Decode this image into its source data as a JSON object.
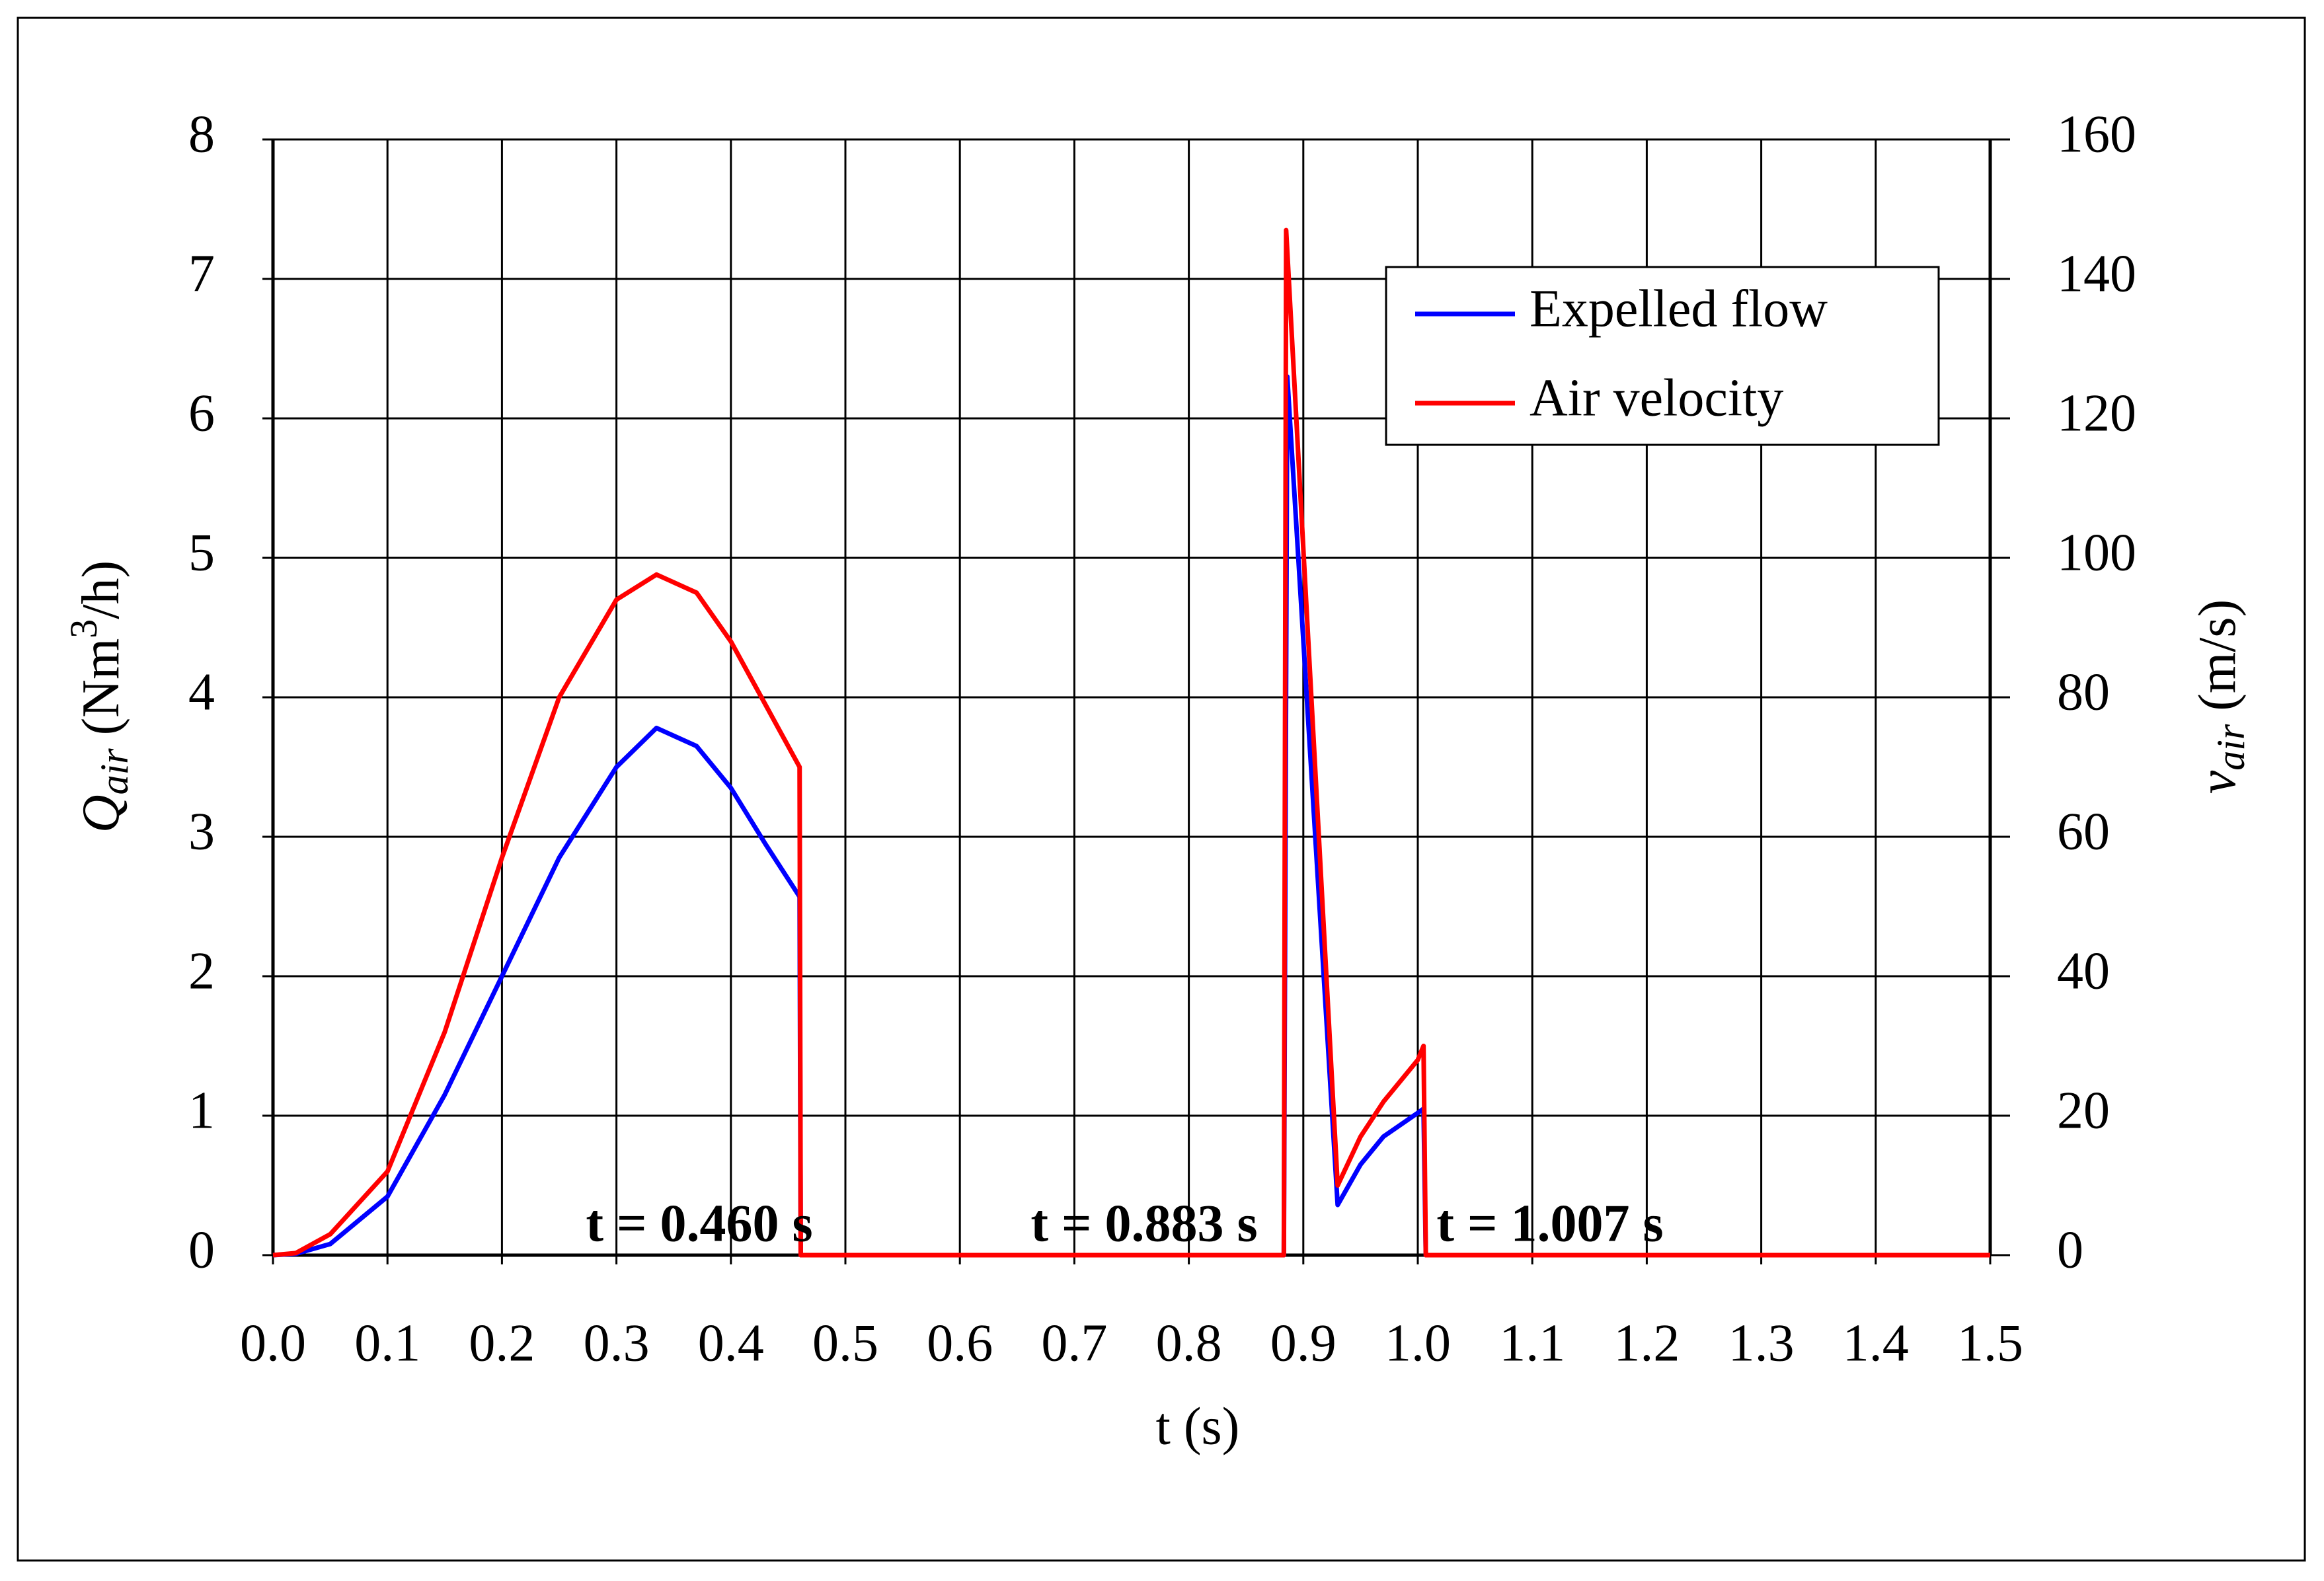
{
  "chart_data": {
    "type": "line",
    "x_label": "t (s)",
    "y_label": {
      "symbol": "Q",
      "subscript": "air",
      "text": " (Nm",
      "superscript": "3",
      "text_end": "/h)"
    },
    "y2_label": {
      "symbol": "v",
      "subscript": "air",
      "text": " (m/s)"
    },
    "xlim": [
      0,
      1.5
    ],
    "xticks": [
      {
        "value": 0,
        "label": "0.0"
      },
      0.1,
      0.2,
      0.3,
      0.4,
      0.5,
      0.6,
      0.7,
      0.8,
      0.9,
      {
        "value": 1,
        "label": "1.0"
      },
      1.1,
      1.2,
      1.3,
      1.4,
      1.5
    ],
    "ylim": [
      0,
      8
    ],
    "yticks": [
      0,
      1,
      2,
      3,
      4,
      5,
      6,
      7,
      8
    ],
    "y2lim": [
      0,
      160
    ],
    "y2ticks": [
      0,
      20,
      40,
      60,
      80,
      100,
      120,
      140,
      160
    ],
    "grid": true,
    "legend": "upper right",
    "series": [
      {
        "name": "Expelled flow",
        "color": "#0000ff",
        "x": [
          0,
          0.02,
          0.05,
          0.1,
          0.15,
          0.2,
          0.25,
          0.3,
          0.335,
          0.37,
          0.4,
          0.43,
          0.46,
          0.461,
          0.883,
          0.886,
          0.93,
          0.95,
          0.97,
          1.0,
          1.005,
          1.007,
          1.5
        ],
        "values": [
          0,
          0.01,
          0.08,
          0.42,
          1.15,
          2.0,
          2.85,
          3.5,
          3.78,
          3.65,
          3.35,
          2.95,
          2.57,
          0,
          0,
          6.3,
          0.36,
          0.65,
          0.85,
          1.02,
          1.05,
          0,
          0
        ]
      },
      {
        "name": "Air velocity",
        "color": "#ff0000",
        "axis": "y2",
        "x": [
          0,
          0.02,
          0.05,
          0.1,
          0.15,
          0.2,
          0.25,
          0.3,
          0.335,
          0.37,
          0.4,
          0.43,
          0.46,
          0.461,
          0.883,
          0.885,
          0.93,
          0.95,
          0.97,
          1.0,
          1.005,
          1.007,
          1.5
        ],
        "values": [
          0,
          0.3,
          3,
          12,
          32,
          57,
          80,
          94,
          97.6,
          95,
          88,
          79,
          70,
          0,
          0,
          147,
          10,
          17,
          22,
          28,
          30,
          0,
          0
        ]
      }
    ],
    "annotations": [
      "t = 0.460 s",
      "t = 0.883 s",
      "t = 1.007 s"
    ]
  }
}
